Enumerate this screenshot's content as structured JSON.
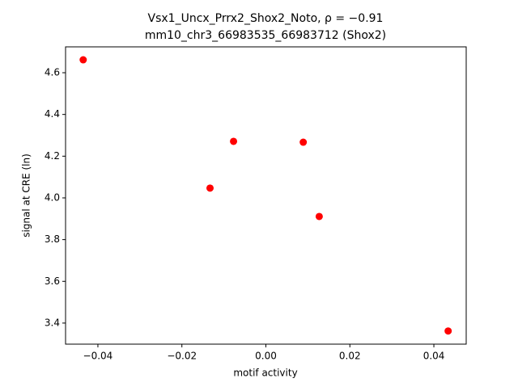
{
  "chart_data": {
    "type": "scatter",
    "title": "Vsx1_Uncx_Prrx2_Shox2_Noto, ρ = −0.91",
    "subtitle": "mm10_chr3_66983535_66983712 (Shox2)",
    "x_label": "motif activity",
    "y_label": "signal at CRE (ln)",
    "color": "#ff0000",
    "x": [
      -0.0435,
      -0.0077,
      -0.0133,
      0.0089,
      0.0127,
      0.0434
    ],
    "values": [
      4.662,
      4.271,
      4.047,
      4.267,
      3.911,
      3.362
    ],
    "xlim": [
      -0.0477,
      0.0477
    ],
    "ylim": [
      3.299,
      4.724
    ],
    "xticks": [
      {
        "value": -0.04,
        "label": "−0.04"
      },
      {
        "value": -0.02,
        "label": "−0.02"
      },
      {
        "value": 0,
        "label": "0.00"
      },
      0.02,
      0.04
    ],
    "yticks": [
      3.4,
      3.6,
      3.8,
      {
        "value": 4.0,
        "label": "4.0"
      },
      4.2,
      4.4,
      4.6
    ]
  }
}
